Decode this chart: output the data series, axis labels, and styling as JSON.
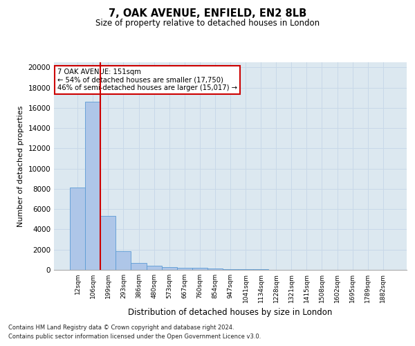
{
  "title1": "7, OAK AVENUE, ENFIELD, EN2 8LB",
  "title2": "Size of property relative to detached houses in London",
  "xlabel": "Distribution of detached houses by size in London",
  "ylabel": "Number of detached properties",
  "categories": [
    "12sqm",
    "106sqm",
    "199sqm",
    "293sqm",
    "386sqm",
    "480sqm",
    "573sqm",
    "667sqm",
    "760sqm",
    "854sqm",
    "947sqm",
    "1041sqm",
    "1134sqm",
    "1228sqm",
    "1321sqm",
    "1415sqm",
    "1508sqm",
    "1602sqm",
    "1695sqm",
    "1789sqm",
    "1882sqm"
  ],
  "values": [
    8100,
    16600,
    5300,
    1850,
    700,
    380,
    280,
    200,
    200,
    130,
    80,
    60,
    40,
    30,
    20,
    15,
    12,
    10,
    8,
    6,
    5
  ],
  "bar_color": "#aec6e8",
  "bar_edge_color": "#5b9bd5",
  "red_line_x": 1.5,
  "annotation_title": "7 OAK AVENUE: 151sqm",
  "annotation_line1": "← 54% of detached houses are smaller (17,750)",
  "annotation_line2": "46% of semi-detached houses are larger (15,017) →",
  "annotation_box_color": "#ffffff",
  "annotation_box_edge": "#cc0000",
  "red_line_color": "#cc0000",
  "grid_color": "#c8d8e8",
  "background_color": "#dce8f0",
  "ylim": [
    0,
    20500
  ],
  "yticks": [
    0,
    2000,
    4000,
    6000,
    8000,
    10000,
    12000,
    14000,
    16000,
    18000,
    20000
  ],
  "footnote1": "Contains HM Land Registry data © Crown copyright and database right 2024.",
  "footnote2": "Contains public sector information licensed under the Open Government Licence v3.0."
}
